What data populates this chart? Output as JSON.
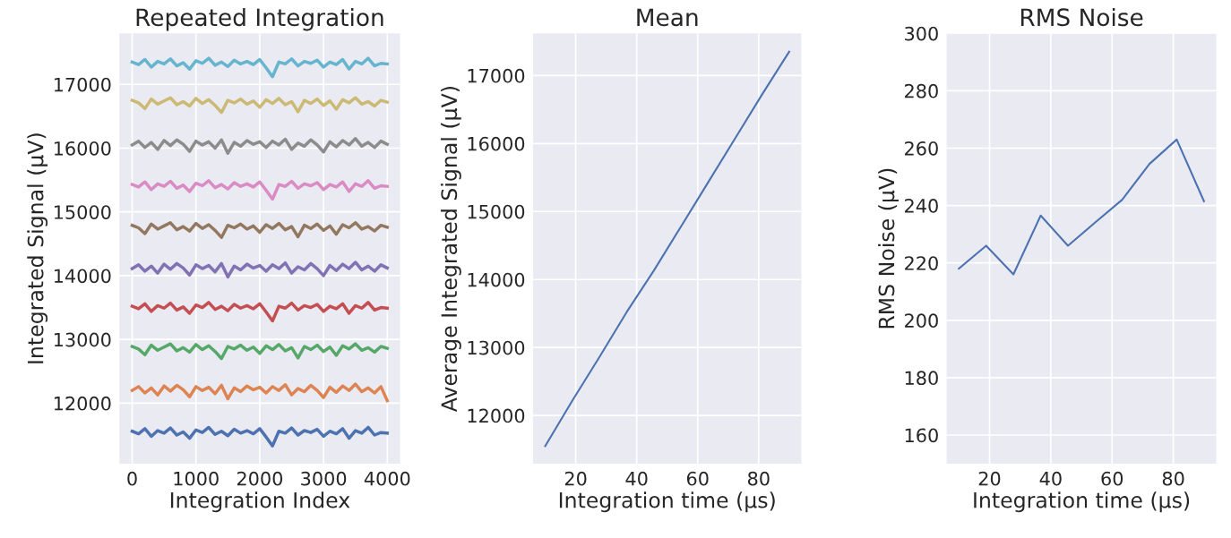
{
  "chart_data": [
    {
      "type": "line",
      "title": "Repeated Integration",
      "xlabel": "Integration Index",
      "ylabel": "Integrated Signal (μV)",
      "grid": true,
      "x": [
        0,
        100,
        200,
        300,
        400,
        500,
        600,
        700,
        800,
        900,
        1000,
        1100,
        1200,
        1300,
        1400,
        1500,
        1600,
        1700,
        1800,
        1900,
        2000,
        2100,
        2200,
        2300,
        2400,
        2500,
        2600,
        2700,
        2800,
        2900,
        3000,
        3100,
        3200,
        3300,
        3400,
        3500,
        3600,
        3700,
        3800,
        3900,
        3999
      ],
      "xlim": [
        -200,
        4200
      ],
      "xticks": [
        0,
        1000,
        2000,
        3000,
        4000
      ],
      "ylim": [
        11050,
        17800
      ],
      "yticks": [
        12000,
        13000,
        14000,
        15000,
        16000,
        17000
      ],
      "series": [
        {
          "color": "#4c72b0",
          "values": [
            11560,
            11520,
            11600,
            11480,
            11570,
            11530,
            11610,
            11500,
            11550,
            11450,
            11580,
            11540,
            11620,
            11510,
            11560,
            11490,
            11590,
            11530,
            11570,
            11520,
            11600,
            11470,
            11330,
            11560,
            11530,
            11610,
            11500,
            11570,
            11540,
            11590,
            11480,
            11560,
            11520,
            11600,
            11450,
            11570,
            11530,
            11620,
            11500,
            11540,
            11530
          ]
        },
        {
          "color": "#dd8452",
          "values": [
            12200,
            12260,
            12160,
            12240,
            12130,
            12270,
            12190,
            12280,
            12210,
            12100,
            12260,
            12200,
            12250,
            12150,
            12280,
            12070,
            12240,
            12180,
            12270,
            12210,
            12250,
            12160,
            12260,
            12200,
            12290,
            12130,
            12230,
            12180,
            12280,
            12200,
            12090,
            12250,
            12170,
            12270,
            12200,
            12300,
            12180,
            12240,
            12160,
            12260,
            12040
          ]
        },
        {
          "color": "#55a868",
          "values": [
            12890,
            12850,
            12760,
            12910,
            12830,
            12880,
            12930,
            12820,
            12870,
            12800,
            12920,
            12840,
            12900,
            12810,
            12700,
            12890,
            12850,
            12910,
            12830,
            12880,
            12780,
            12900,
            12840,
            12920,
            12820,
            12870,
            12710,
            12890,
            12840,
            12910,
            12810,
            12880,
            12750,
            12900,
            12850,
            12930,
            12830,
            12870,
            12800,
            12890,
            12860
          ]
        },
        {
          "color": "#c44e52",
          "values": [
            13520,
            13480,
            13560,
            13440,
            13530,
            13490,
            13570,
            13460,
            13510,
            13410,
            13540,
            13500,
            13580,
            13470,
            13520,
            13450,
            13550,
            13490,
            13530,
            13480,
            13560,
            13430,
            13290,
            13520,
            13490,
            13570,
            13460,
            13530,
            13500,
            13550,
            13440,
            13520,
            13480,
            13560,
            13410,
            13530,
            13490,
            13580,
            13460,
            13500,
            13490
          ]
        },
        {
          "color": "#8172b3",
          "values": [
            14110,
            14170,
            14070,
            14150,
            14040,
            14180,
            14100,
            14190,
            14120,
            14010,
            14170,
            14110,
            14160,
            14060,
            14190,
            13980,
            14150,
            14090,
            14180,
            14120,
            14160,
            14070,
            14170,
            14110,
            14200,
            14040,
            14140,
            14090,
            14190,
            14110,
            14000,
            14160,
            14080,
            14180,
            14110,
            14210,
            14090,
            14150,
            14070,
            14170,
            14120
          ]
        },
        {
          "color": "#937860",
          "values": [
            14790,
            14750,
            14660,
            14810,
            14730,
            14780,
            14830,
            14720,
            14770,
            14700,
            14820,
            14740,
            14800,
            14710,
            14600,
            14790,
            14750,
            14810,
            14730,
            14780,
            14680,
            14800,
            14740,
            14820,
            14720,
            14770,
            14610,
            14790,
            14740,
            14810,
            14710,
            14780,
            14650,
            14800,
            14750,
            14830,
            14730,
            14770,
            14700,
            14790,
            14760
          ]
        },
        {
          "color": "#da8bc3",
          "values": [
            15430,
            15390,
            15470,
            15350,
            15440,
            15400,
            15480,
            15370,
            15420,
            15320,
            15450,
            15410,
            15490,
            15380,
            15430,
            15360,
            15460,
            15400,
            15440,
            15390,
            15470,
            15340,
            15200,
            15430,
            15400,
            15480,
            15370,
            15440,
            15410,
            15460,
            15350,
            15430,
            15390,
            15470,
            15320,
            15440,
            15400,
            15490,
            15370,
            15410,
            15400
          ]
        },
        {
          "color": "#8c8c8c",
          "values": [
            16050,
            16110,
            16010,
            16090,
            15980,
            16120,
            16040,
            16130,
            16060,
            15950,
            16110,
            16050,
            16100,
            16000,
            16130,
            15920,
            16090,
            16030,
            16120,
            16060,
            16100,
            16010,
            16110,
            16050,
            16140,
            15980,
            16080,
            16030,
            16130,
            16050,
            15940,
            16100,
            16020,
            16120,
            16050,
            16150,
            16030,
            16090,
            16010,
            16110,
            16060
          ]
        },
        {
          "color": "#ccb974",
          "values": [
            16750,
            16710,
            16620,
            16770,
            16690,
            16740,
            16790,
            16680,
            16730,
            16660,
            16780,
            16700,
            16760,
            16670,
            16560,
            16750,
            16710,
            16770,
            16690,
            16740,
            16640,
            16760,
            16700,
            16780,
            16680,
            16730,
            16570,
            16750,
            16700,
            16770,
            16670,
            16740,
            16610,
            16760,
            16710,
            16790,
            16690,
            16730,
            16660,
            16750,
            16720
          ]
        },
        {
          "color": "#64b5cd",
          "values": [
            17350,
            17310,
            17390,
            17270,
            17360,
            17320,
            17400,
            17290,
            17340,
            17240,
            17370,
            17330,
            17410,
            17300,
            17350,
            17280,
            17380,
            17320,
            17360,
            17310,
            17390,
            17260,
            17120,
            17350,
            17320,
            17400,
            17290,
            17360,
            17330,
            17380,
            17270,
            17350,
            17310,
            17390,
            17240,
            17360,
            17320,
            17410,
            17290,
            17330,
            17320
          ]
        }
      ]
    },
    {
      "type": "line",
      "title": "Mean",
      "xlabel": "Integration time (μs)",
      "ylabel": "Average Integrated Signal (μV)",
      "grid": true,
      "x": [
        10,
        18.9,
        27.8,
        36.7,
        45.6,
        54.4,
        63.3,
        72.2,
        81.1,
        90
      ],
      "xlim": [
        6,
        94
      ],
      "xticks": [
        20,
        40,
        60,
        80
      ],
      "ylim": [
        11290,
        17620
      ],
      "yticks": [
        12000,
        13000,
        14000,
        15000,
        16000,
        17000
      ],
      "series": [
        {
          "color": "#4c72b0",
          "values": [
            11550,
            12220,
            12860,
            13520,
            14130,
            14770,
            15420,
            16070,
            16720,
            17350
          ]
        }
      ]
    },
    {
      "type": "line",
      "title": "RMS Noise",
      "xlabel": "Integration time (μs)",
      "ylabel": "RMS Noise (μV)",
      "grid": true,
      "x": [
        10,
        18.9,
        27.8,
        36.7,
        45.6,
        54.4,
        63.3,
        72.2,
        81.1,
        90
      ],
      "xlim": [
        6,
        94
      ],
      "xticks": [
        20,
        40,
        60,
        80
      ],
      "ylim": [
        150,
        300
      ],
      "yticks": [
        160,
        180,
        200,
        220,
        240,
        260,
        280,
        300
      ],
      "series": [
        {
          "color": "#4c72b0",
          "values": [
            218,
            226,
            216,
            236.5,
            226,
            234,
            242,
            254.5,
            263,
            241.5
          ]
        }
      ]
    }
  ]
}
